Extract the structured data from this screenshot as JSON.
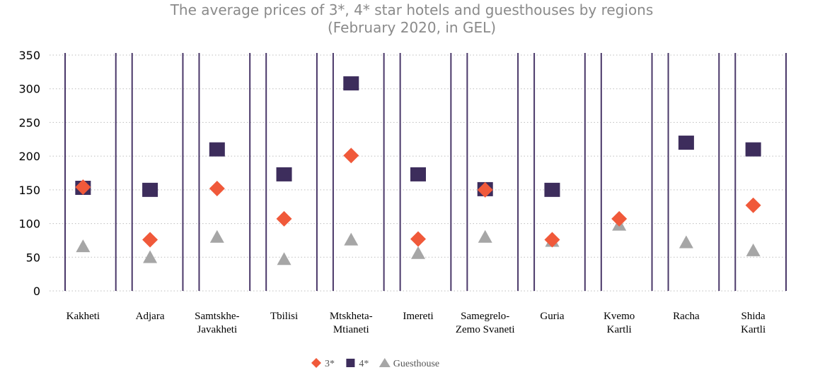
{
  "chart_data": {
    "type": "scatter",
    "title": "The average prices of 3*, 4* star hotels and guesthouses by regions",
    "subtitle": "(February 2020, in GEL)",
    "categories": [
      [
        "Kakheti"
      ],
      [
        "Adjara"
      ],
      [
        "Samtskhe-",
        "Javakheti"
      ],
      [
        "Tbilisi"
      ],
      [
        "Mtskheta-",
        "Mtianeti"
      ],
      [
        "Imereti"
      ],
      [
        "Samegrelo-",
        "Zemo Svaneti"
      ],
      [
        "Guria"
      ],
      [
        "Kvemo",
        "Kartli"
      ],
      [
        "Racha"
      ],
      [
        "Shida",
        "Kartli"
      ]
    ],
    "ylim": [
      0,
      350
    ],
    "yticks": [
      0,
      50,
      100,
      150,
      200,
      250,
      300,
      350
    ],
    "grid": true,
    "legend_position": "bottom",
    "series": [
      {
        "name": "3*",
        "marker": "diamond",
        "color": "#f0593a",
        "values": [
          154,
          76,
          152,
          107,
          201,
          77,
          150,
          76,
          107,
          null,
          127
        ]
      },
      {
        "name": "4*",
        "marker": "square",
        "color": "#3d2d5c",
        "values": [
          153,
          150,
          210,
          173,
          308,
          173,
          151,
          150,
          null,
          220,
          210
        ]
      },
      {
        "name": "Guesthouse",
        "marker": "triangle",
        "color": "#a6a6a6",
        "values": [
          65,
          49,
          79,
          46,
          75,
          55,
          79,
          73,
          97,
          71,
          59
        ]
      }
    ]
  }
}
